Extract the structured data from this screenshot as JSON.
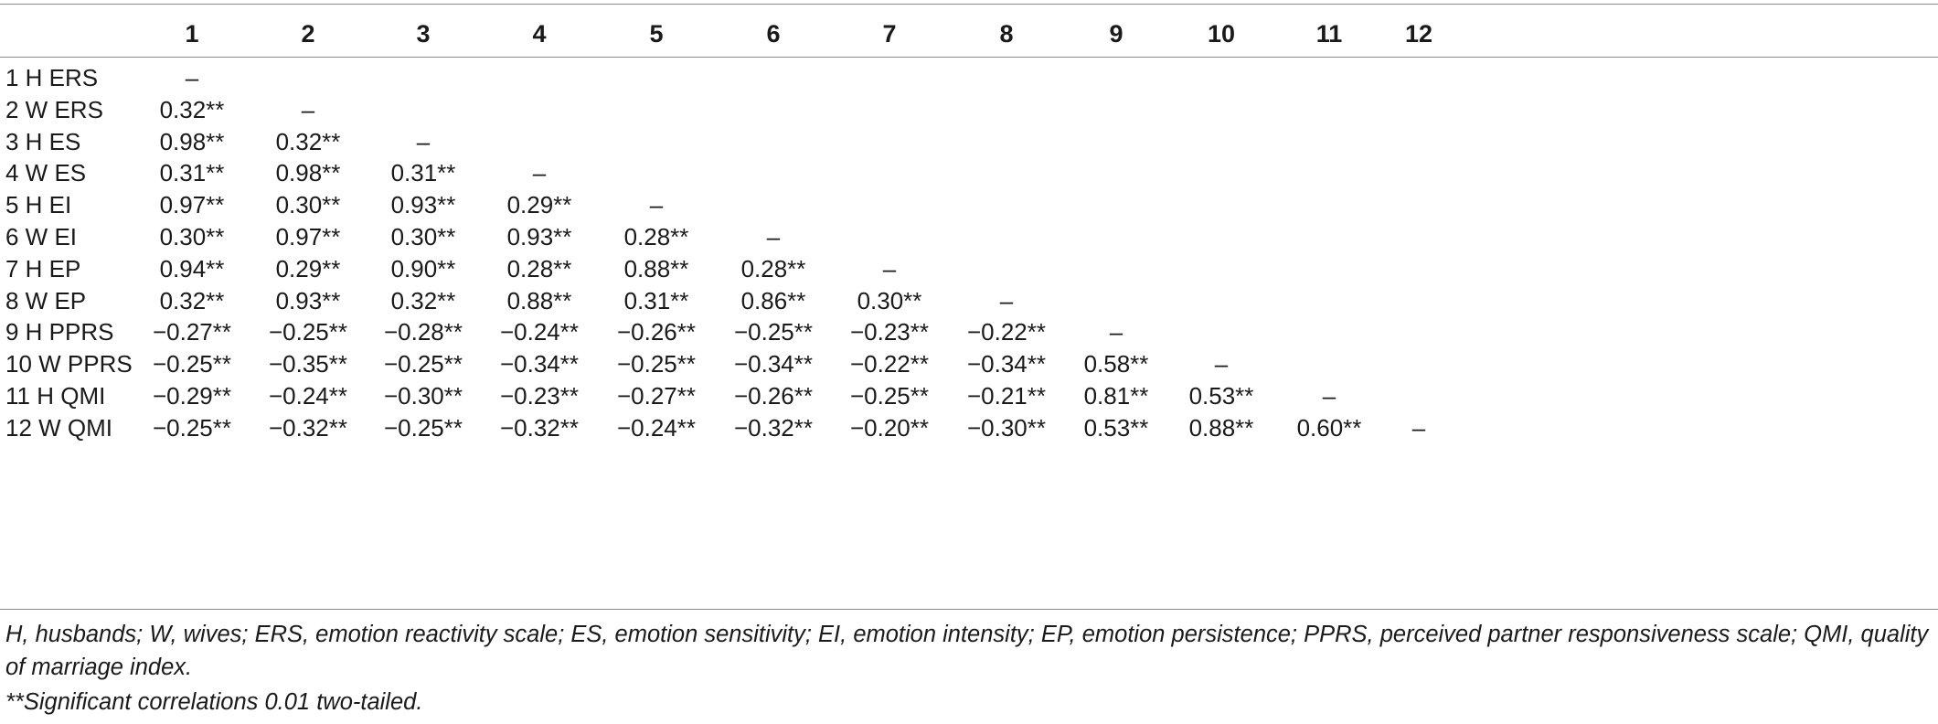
{
  "table": {
    "columns": [
      "1",
      "2",
      "3",
      "4",
      "5",
      "6",
      "7",
      "8",
      "9",
      "10",
      "11",
      "12"
    ],
    "rows": [
      {
        "label": "1 H ERS",
        "values": [
          "–"
        ]
      },
      {
        "label": "2 W ERS",
        "values": [
          "0.32**",
          "–"
        ]
      },
      {
        "label": "3 H ES",
        "values": [
          "0.98**",
          "0.32**",
          "–"
        ]
      },
      {
        "label": "4 W ES",
        "values": [
          "0.31**",
          "0.98**",
          "0.31**",
          "–"
        ]
      },
      {
        "label": "5 H EI",
        "values": [
          "0.97**",
          "0.30**",
          "0.93**",
          "0.29**",
          "–"
        ]
      },
      {
        "label": "6 W EI",
        "values": [
          "0.30**",
          "0.97**",
          "0.30**",
          "0.93**",
          "0.28**",
          "–"
        ]
      },
      {
        "label": "7 H EP",
        "values": [
          "0.94**",
          "0.29**",
          "0.90**",
          "0.28**",
          "0.88**",
          "0.28**",
          "–"
        ]
      },
      {
        "label": "8 W EP",
        "values": [
          "0.32**",
          "0.93**",
          "0.32**",
          "0.88**",
          "0.31**",
          "0.86**",
          "0.30**",
          "–"
        ]
      },
      {
        "label": "9 H PPRS",
        "values": [
          "−0.27**",
          "−0.25**",
          "−0.28**",
          "−0.24**",
          "−0.26**",
          "−0.25**",
          "−0.23**",
          "−0.22**",
          "–"
        ]
      },
      {
        "label": "10 W PPRS",
        "values": [
          "−0.25**",
          "−0.35**",
          "−0.25**",
          "−0.34**",
          "−0.25**",
          "−0.34**",
          "−0.22**",
          "−0.34**",
          "0.58**",
          "–"
        ]
      },
      {
        "label": "11 H QMI",
        "values": [
          "−0.29**",
          "−0.24**",
          "−0.30**",
          "−0.23**",
          "−0.27**",
          "−0.26**",
          "−0.25**",
          "−0.21**",
          "0.81**",
          "0.53**",
          "–"
        ]
      },
      {
        "label": "12 W QMI",
        "values": [
          "−0.25**",
          "−0.32**",
          "−0.25**",
          "−0.32**",
          "−0.24**",
          "−0.32**",
          "−0.20**",
          "−0.30**",
          "0.53**",
          "0.88**",
          "0.60**",
          "–"
        ]
      }
    ]
  },
  "footnotes": {
    "abbreviations": "H, husbands; W, wives; ERS, emotion reactivity scale; ES, emotion sensitivity; EI, emotion intensity; EP, emotion persistence; PPRS, perceived partner responsiveness scale; QMI, quality of marriage index.",
    "significance": "**Significant correlations 0.01 two-tailed."
  }
}
